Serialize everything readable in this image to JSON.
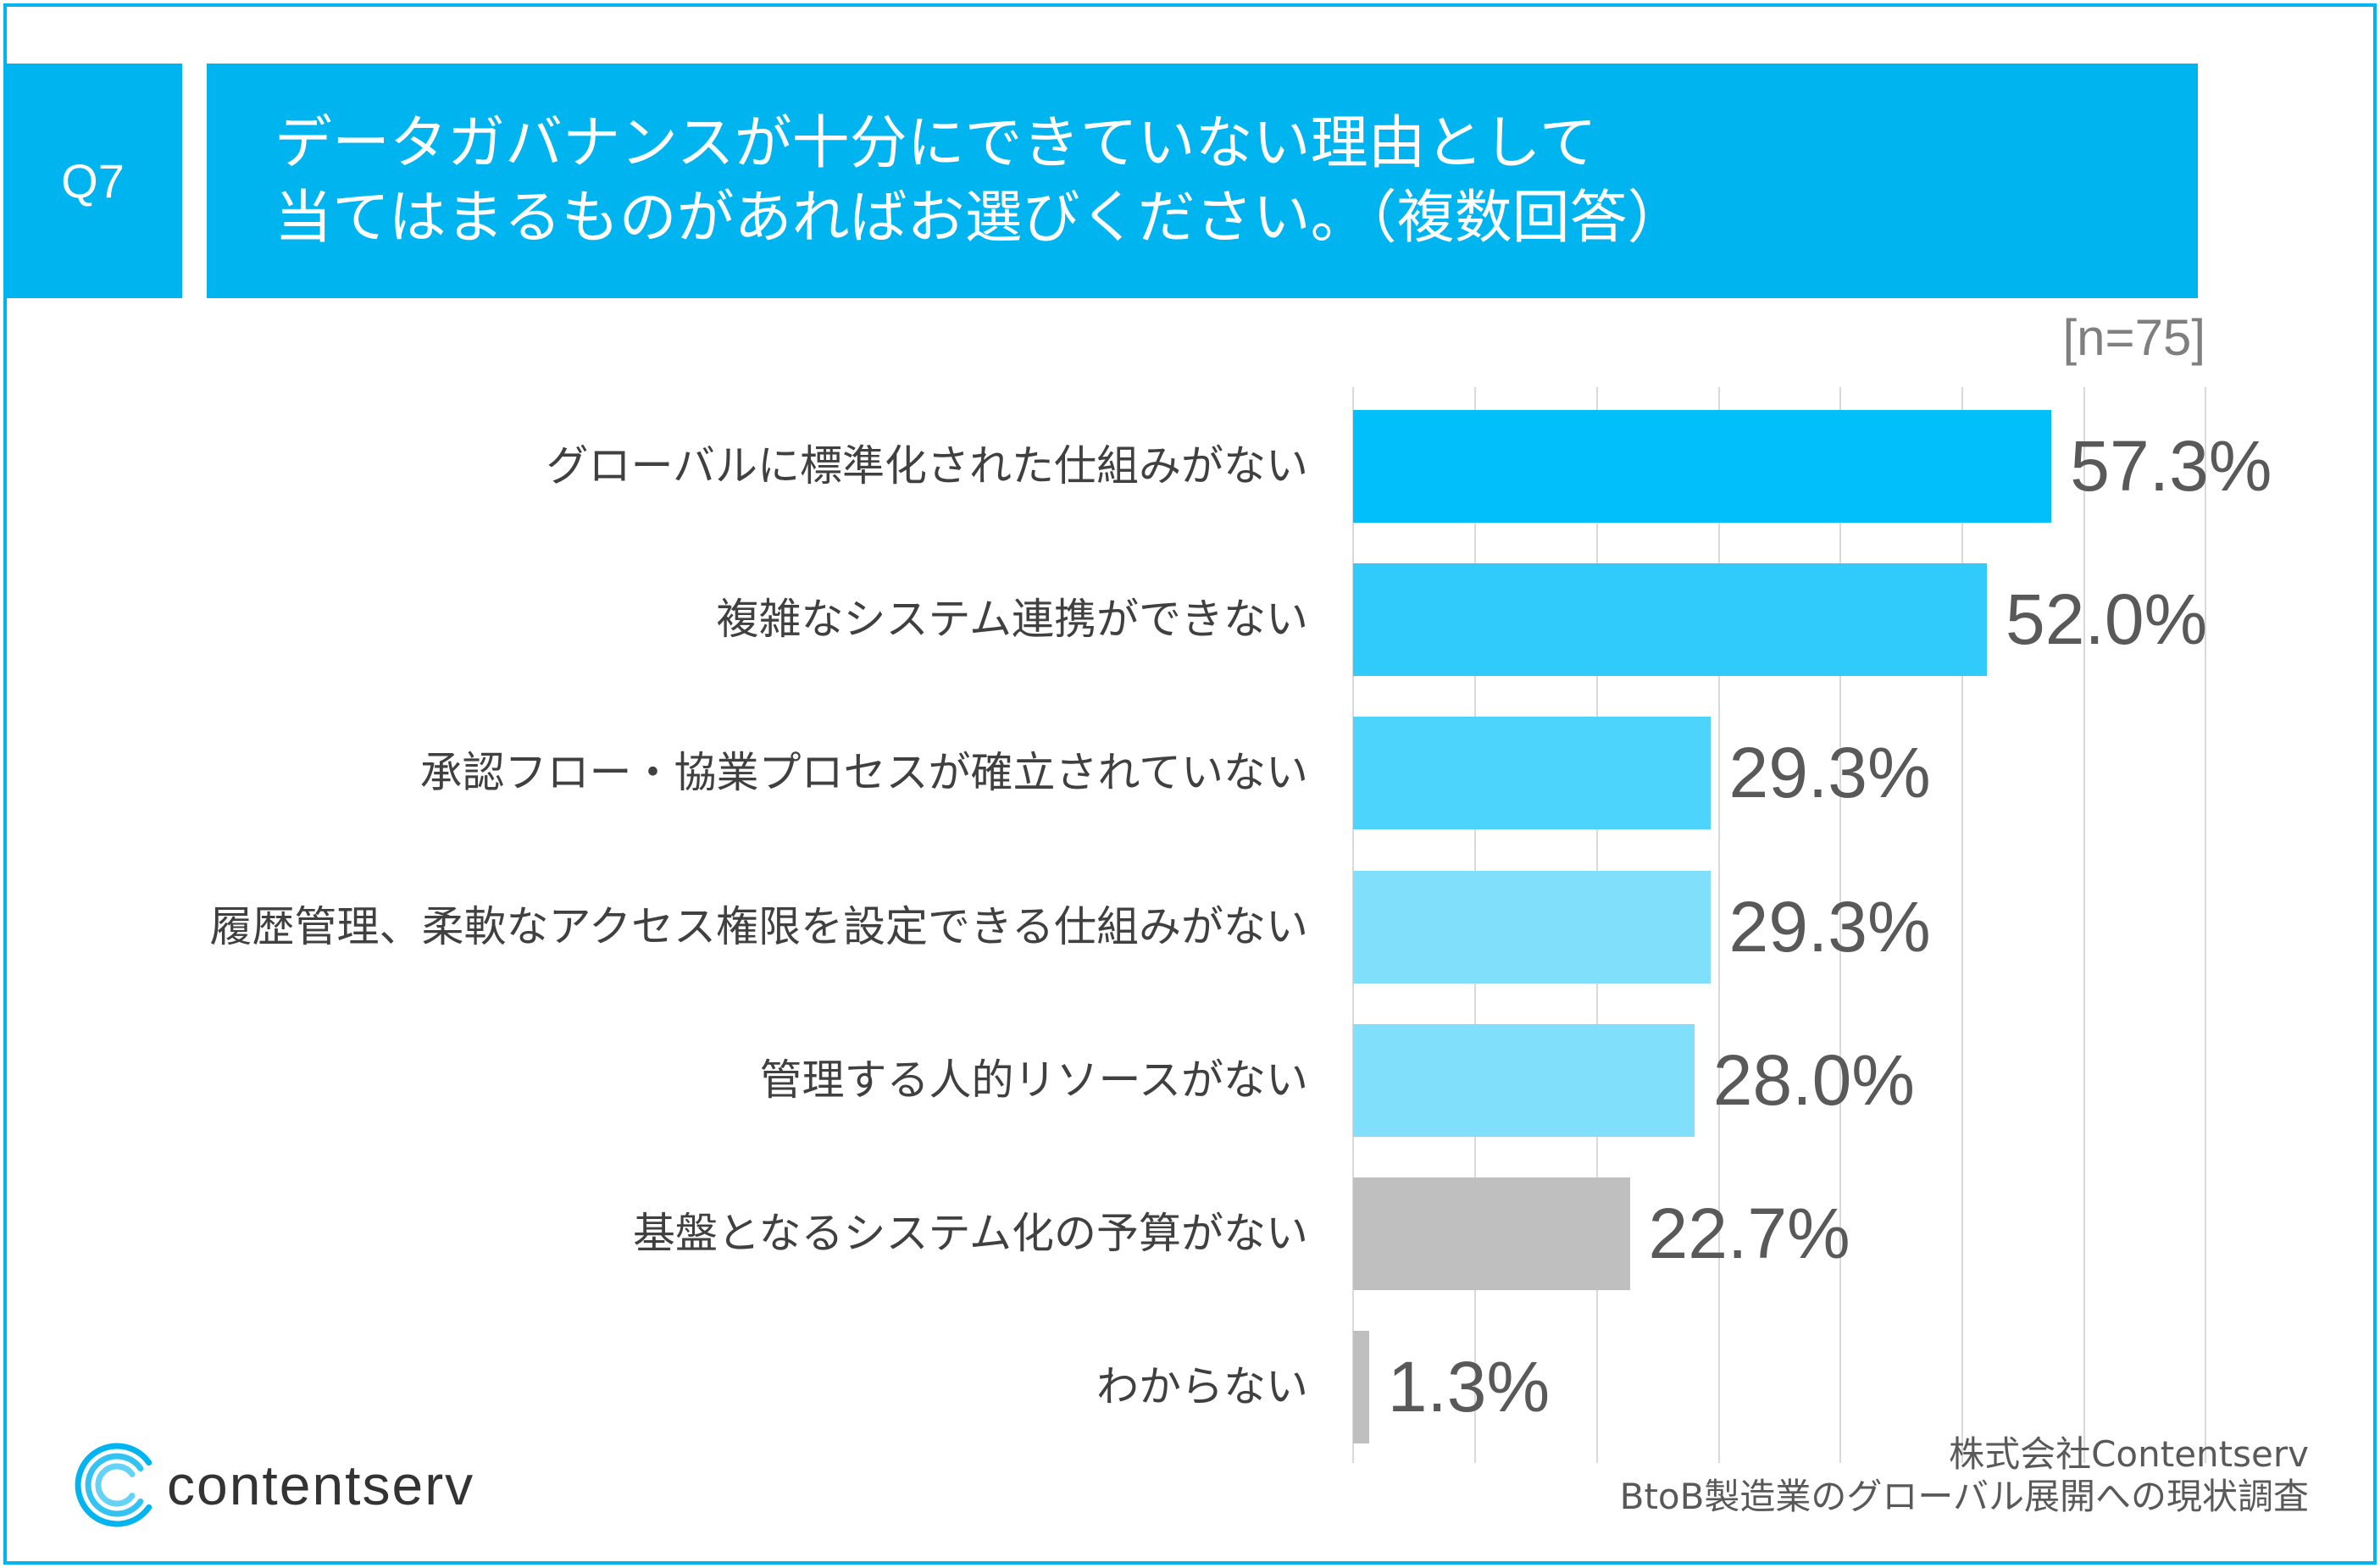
{
  "question": {
    "number": "Q7",
    "title_lines": [
      "データガバナンスが十分にできていない理由として",
      "当てはまるものがあればお選びください。（複数回答）"
    ]
  },
  "sample_size": "[n=75]",
  "chart_data": {
    "type": "bar",
    "orientation": "horizontal",
    "categories": [
      "グローバルに標準化された仕組みがない",
      "複雑なシステム連携ができない",
      "承認フロー・協業プロセスが確立されていない",
      "履歴管理、柔軟なアクセス権限を設定できる仕組みがない",
      "管理する人的リソースがない",
      "基盤となるシステム化の予算がない",
      "わからない"
    ],
    "values": [
      57.3,
      52.0,
      29.3,
      29.3,
      28.0,
      22.7,
      1.3
    ],
    "value_labels": [
      "57.3%",
      "52.0%",
      "29.3%",
      "29.3%",
      "28.0%",
      "22.7%",
      "1.3%"
    ],
    "bar_colors": [
      "#00BFFB",
      "#30CAFB",
      "#4DD4FC",
      "#80E0FC",
      "#80E0FC",
      "#BFBFBF",
      "#BFBFBF"
    ],
    "xlim": [
      0,
      70
    ],
    "grid": true,
    "grid_step": 10
  },
  "brand": {
    "logo_icon": "contentserv-logo-icon",
    "name": "contentserv"
  },
  "source": {
    "lines": [
      "株式会社Contentserv",
      "BtoB製造業のグローバル展開への現状調査"
    ]
  },
  "colors": {
    "accent": "#00B4F0",
    "logo_rings": [
      "#00B4F0",
      "#33C3F3",
      "#66D2F6"
    ]
  }
}
